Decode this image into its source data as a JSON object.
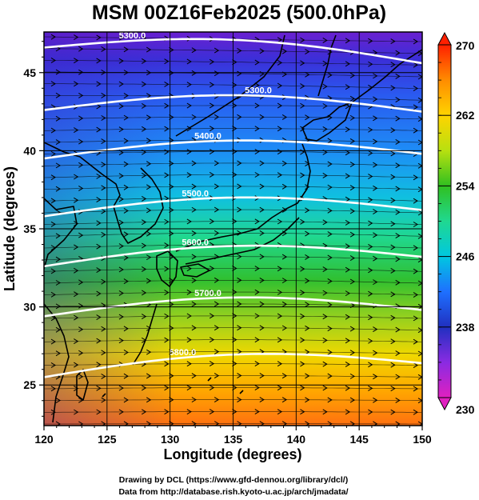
{
  "title": "MSM 00Z16Feb2025 (500.0hPa)",
  "xlabel": "Longitude (degrees)",
  "ylabel": "Latitude  (degrees)",
  "x_ticks": [
    "120",
    "125",
    "130",
    "135",
    "140",
    "145",
    "150"
  ],
  "y_ticks": [
    "25",
    "30",
    "35",
    "40",
    "45"
  ],
  "colorbar": {
    "ticks": [
      "270",
      "262",
      "254",
      "246",
      "238",
      "230"
    ],
    "min": 230,
    "max": 270,
    "colors": [
      "#e020c0",
      "#8a2be2",
      "#2030c0",
      "#1e70ff",
      "#00c8e0",
      "#20d890",
      "#30c020",
      "#b8e010",
      "#ffd400",
      "#ff8c00",
      "#ff2000"
    ]
  },
  "contours": [
    {
      "label": "5300.0"
    },
    {
      "label": "5300.0"
    },
    {
      "label": "5400.0"
    },
    {
      "label": "5500.0"
    },
    {
      "label": "5600.0"
    },
    {
      "label": "5700.0"
    },
    {
      "label": "5800.0"
    }
  ],
  "credits": {
    "line1": "Drawing by DCL (https://www.gfd-dennou.org/library/dcl/)",
    "line2": "Data from http://database.rish.kyoto-u.ac.jp/arch/jmadata/"
  },
  "chart_data": {
    "type": "heatmap",
    "title": "MSM 00Z16Feb2025 (500.0hPa)",
    "xlabel": "Longitude (degrees)",
    "ylabel": "Latitude  (degrees)",
    "xlim": [
      120,
      150
    ],
    "ylim": [
      22.4,
      47.6
    ],
    "colorbar_range": [
      230,
      270
    ],
    "contour_levels": [
      {
        "value": 5300.0,
        "lat_at_west": 46.6,
        "lat_at_east": 45.6
      },
      {
        "value": 5300.0,
        "lat_at_west": 42.6,
        "lat_at_east": 42.5
      },
      {
        "value": 5400.0,
        "lat_at_west": 39.5,
        "lat_at_east": 39.8
      },
      {
        "value": 5500.0,
        "lat_at_west": 35.8,
        "lat_at_east": 36.2
      },
      {
        "value": 5600.0,
        "lat_at_west": 32.6,
        "lat_at_east": 33.2
      },
      {
        "value": 5700.0,
        "lat_at_west": 29.4,
        "lat_at_east": 29.8
      },
      {
        "value": 5800.0,
        "lat_at_west": 25.5,
        "lat_at_east": 26.4
      }
    ]
  }
}
